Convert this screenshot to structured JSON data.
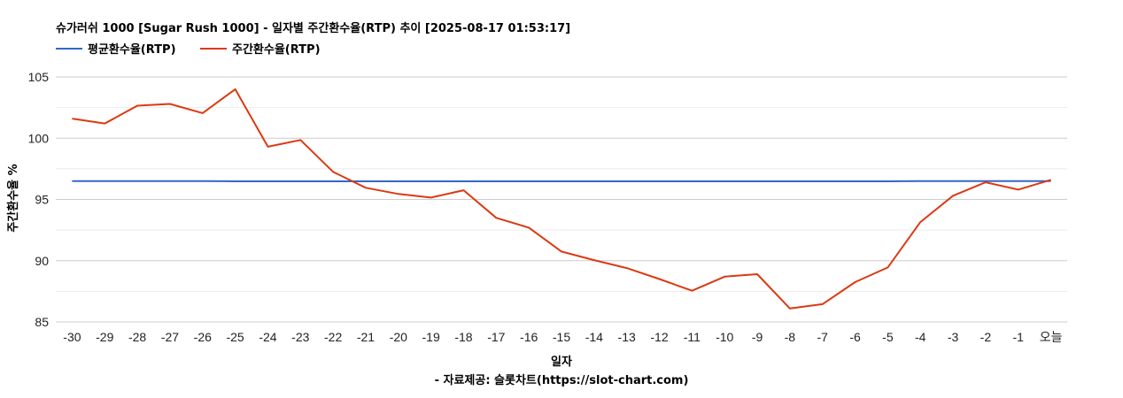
{
  "chart_data": {
    "type": "line",
    "title": "슈가러쉬 1000 [Sugar Rush 1000] - 일자별 주간환수율(RTP) 추이 [2025-08-17 01:53:17]",
    "xlabel": "일자",
    "ylabel": "주간환수율 %",
    "source_note": "- 자료제공: 슬롯차트(https://slot-chart.com)",
    "ylim": [
      85,
      105
    ],
    "yticks": [
      85,
      90,
      95,
      100,
      105
    ],
    "grid": true,
    "legend_position": "top-left",
    "x": [
      "-30",
      "-29",
      "-28",
      "-27",
      "-26",
      "-25",
      "-24",
      "-23",
      "-22",
      "-21",
      "-20",
      "-19",
      "-18",
      "-17",
      "-16",
      "-15",
      "-14",
      "-13",
      "-12",
      "-11",
      "-10",
      "-9",
      "-8",
      "-7",
      "-6",
      "-5",
      "-4",
      "-3",
      "-2",
      "-1",
      "오늘"
    ],
    "series": [
      {
        "name": "평균환수율(RTP)",
        "color": "#3366cc",
        "values": [
          96.5,
          96.5,
          96.5,
          96.5,
          96.5,
          96.48,
          96.48,
          96.48,
          96.48,
          96.48,
          96.48,
          96.48,
          96.48,
          96.48,
          96.48,
          96.48,
          96.48,
          96.48,
          96.48,
          96.48,
          96.48,
          96.48,
          96.48,
          96.48,
          96.48,
          96.48,
          96.5,
          96.5,
          96.5,
          96.5,
          96.5
        ]
      },
      {
        "name": "주간환수율(RTP)",
        "color": "#dc3912",
        "values": [
          101.6,
          101.2,
          102.65,
          102.8,
          102.05,
          104.0,
          99.3,
          99.85,
          97.25,
          95.95,
          95.45,
          95.15,
          95.75,
          93.5,
          92.7,
          90.75,
          90.05,
          89.4,
          88.5,
          87.55,
          88.7,
          88.9,
          86.1,
          86.45,
          88.25,
          89.45,
          93.15,
          95.3,
          96.4,
          95.8,
          96.6
        ]
      }
    ]
  }
}
